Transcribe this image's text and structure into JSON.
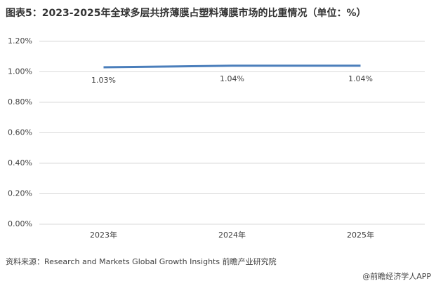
{
  "chart_data": {
    "type": "line",
    "title": "图表5：2023-2025年全球多层共挤薄膜占塑料薄膜市场的比重情况（单位：%）",
    "categories": [
      "2023年",
      "2024年",
      "2025年"
    ],
    "series": [
      {
        "name": "比重",
        "color": "#4a7ebb",
        "values": [
          1.03,
          1.04,
          1.04
        ],
        "value_labels": [
          "1.03%",
          "1.04%",
          "1.04%"
        ]
      }
    ],
    "ylim": [
      0,
      1.2
    ],
    "yticks": [
      {
        "value": 0,
        "label": "0.00%"
      },
      {
        "value": 0.2,
        "label": "0.20%"
      },
      {
        "value": 0.4,
        "label": "0.40%"
      },
      {
        "value": 0.6,
        "label": "0.60%"
      },
      {
        "value": 0.8,
        "label": "0.80%"
      },
      {
        "value": 1.0,
        "label": "1.00%"
      },
      {
        "value": 1.2,
        "label": "1.20%"
      }
    ],
    "grid": true,
    "source": "资料来源：Research and Markets Global Growth Insights  前瞻产业研究院",
    "footer": "@前瞻经济学人APP"
  }
}
